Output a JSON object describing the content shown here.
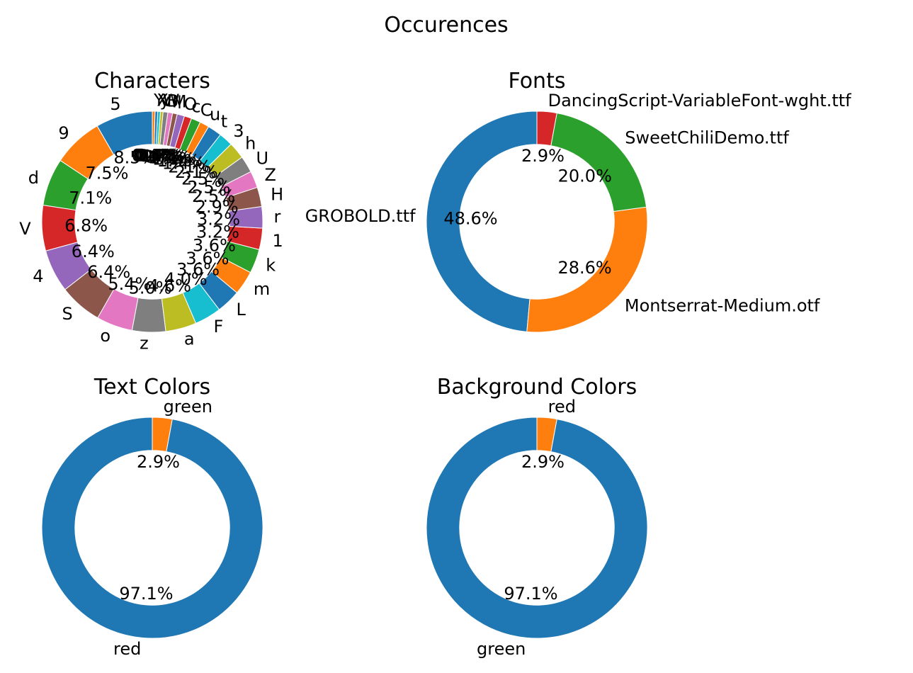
{
  "figure": {
    "title": "Occurences"
  },
  "chart_data": [
    {
      "type": "pie",
      "donut": true,
      "title": "Characters",
      "labels": [
        "5",
        "9",
        "d",
        "V",
        "4",
        "S",
        "o",
        "z",
        "a",
        "F",
        "L",
        "m",
        "k",
        "1",
        "r",
        "H",
        "Z",
        "U",
        "h",
        "3",
        "t",
        "u",
        "C",
        "c",
        "O",
        "l",
        "M",
        "B",
        "W",
        "y",
        "X",
        "Y"
      ],
      "values": [
        8.5,
        7.5,
        7.1,
        6.8,
        6.4,
        6.4,
        5.4,
        5.0,
        4.6,
        4.0,
        3.6,
        3.6,
        3.6,
        3.2,
        3.2,
        2.9,
        2.5,
        2.5,
        2.5,
        2.1,
        2.1,
        1.4,
        1.4,
        1.1,
        1.1,
        0.7,
        0.7,
        0.7,
        0.4,
        0.4,
        0.4,
        0.4
      ],
      "value_labels": [
        "8.5%",
        "7.5%",
        "7.1%",
        "6.8%",
        "6.4%",
        "6.4%",
        "5.4%",
        "5.0%",
        "4.6%",
        "4.0%",
        "3.6%",
        "3.6%",
        "3.6%",
        "3.2%",
        "3.2%",
        "2.9%",
        "2.5%",
        "2.5%",
        "2.5%",
        "2.1%",
        "2.1%",
        "1.4%",
        "1.4%",
        "1.1%",
        "1.1%",
        "0.7%",
        "0.7%",
        "0.7%",
        "0.4%",
        "0.4%",
        "0.4%",
        "0.4%"
      ]
    },
    {
      "type": "pie",
      "donut": true,
      "title": "Fonts",
      "labels": [
        "GROBOLD.ttf",
        "Montserrat-Medium.otf",
        "SweetChiliDemo.ttf",
        "DancingScript-VariableFont-wght.ttf"
      ],
      "values": [
        48.6,
        28.6,
        20.0,
        2.9
      ],
      "value_labels": [
        "48.6%",
        "28.6%",
        "20.0%",
        "2.9%"
      ]
    },
    {
      "type": "pie",
      "donut": true,
      "title": "Text Colors",
      "labels": [
        "red",
        "green"
      ],
      "values": [
        97.1,
        2.9
      ],
      "value_labels": [
        "97.1%",
        "2.9%"
      ]
    },
    {
      "type": "pie",
      "donut": true,
      "title": "Background Colors",
      "labels": [
        "green",
        "red"
      ],
      "values": [
        97.1,
        2.9
      ],
      "value_labels": [
        "97.1%",
        "2.9%"
      ]
    }
  ],
  "palette": [
    "#1f77b4",
    "#ff7f0e",
    "#2ca02c",
    "#d62728",
    "#9467bd",
    "#8c564b",
    "#e377c2",
    "#7f7f7f",
    "#bcbd22",
    "#17becf"
  ],
  "series_colors": [
    null,
    [
      "#1f77b4",
      "#ff7f0e",
      "#2ca02c",
      "#d62728"
    ],
    [
      "#1f77b4",
      "#ff7f0e"
    ],
    [
      "#1f77b4",
      "#ff7f0e"
    ]
  ]
}
